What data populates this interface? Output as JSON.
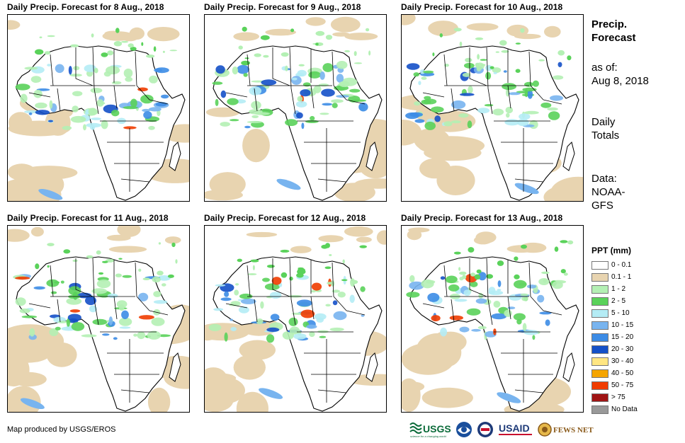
{
  "panels": [
    {
      "title": "Daily Precip. Forecast for 8 Aug., 2018"
    },
    {
      "title": "Daily Precip. Forecast for 9 Aug., 2018"
    },
    {
      "title": "Daily Precip. Forecast for 10 Aug., 2018"
    },
    {
      "title": "Daily Precip. Forecast for 11 Aug., 2018"
    },
    {
      "title": "Daily Precip. Forecast for 12 Aug., 2018"
    },
    {
      "title": "Daily Precip. Forecast for 13 Aug., 2018"
    }
  ],
  "sidebar": {
    "title_line1": "Precip.",
    "title_line2": "Forecast",
    "asof_line1": "as of:",
    "asof_line2": "Aug 8, 2018",
    "totals_line1": "Daily",
    "totals_line2": "Totals",
    "data_line1": "Data:",
    "data_line2": "NOAA-",
    "data_line3": "GFS"
  },
  "legend": {
    "title": "PPT (mm)",
    "items": [
      {
        "label": "0 - 0.1",
        "color": "#ffffff"
      },
      {
        "label": "0.1 - 1",
        "color": "#e8d4b0"
      },
      {
        "label": "1 - 2",
        "color": "#b4f0b4"
      },
      {
        "label": "2 - 5",
        "color": "#5ad25a"
      },
      {
        "label": "5 - 10",
        "color": "#b4ecf5"
      },
      {
        "label": "10 - 15",
        "color": "#78b4ef"
      },
      {
        "label": "15 - 20",
        "color": "#3c8ce6"
      },
      {
        "label": "20 - 30",
        "color": "#1450c8"
      },
      {
        "label": "30 - 40",
        "color": "#ffe682"
      },
      {
        "label": "40 - 50",
        "color": "#f5a500"
      },
      {
        "label": "50 - 75",
        "color": "#f03c00"
      },
      {
        "label": "> 75",
        "color": "#a01414"
      },
      {
        "label": "No Data",
        "color": "#999999"
      }
    ]
  },
  "credit": "Map produced by USGS/EROS",
  "logos": {
    "usgs": "USGS",
    "usgs_tagline": "science for a changing world",
    "usaid": "USAID",
    "fewsnet": "FEWS NET"
  }
}
